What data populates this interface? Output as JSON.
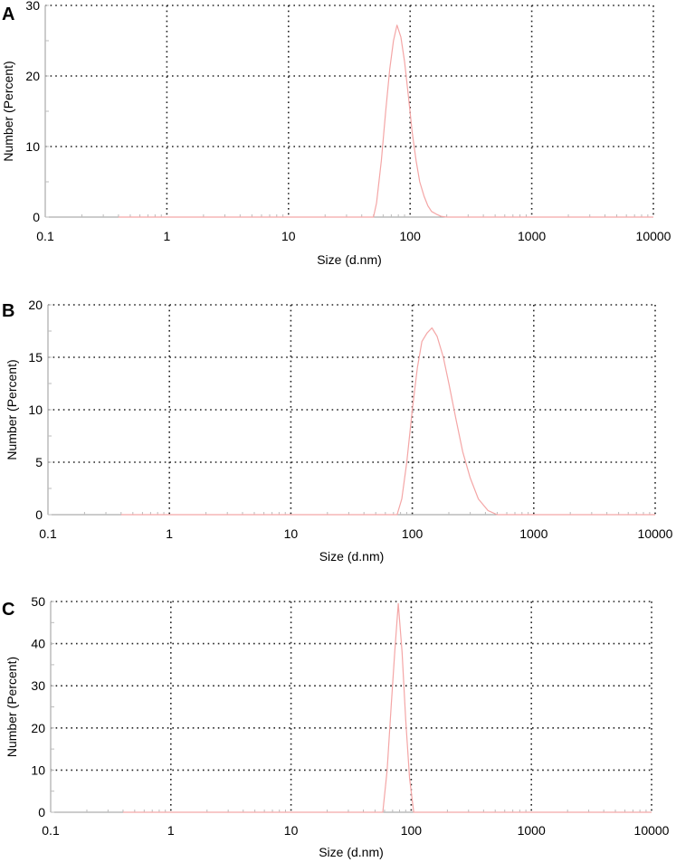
{
  "chart_data": [
    {
      "panel_label": "A",
      "type": "line",
      "xlabel": "Size (d.nm)",
      "ylabel": "Number (Percent)",
      "xscale": "log",
      "xlim": [
        0.1,
        10000
      ],
      "ylim": [
        0,
        30
      ],
      "x_ticks": [
        "0.1",
        "1",
        "10",
        "100",
        "1000",
        "10000"
      ],
      "y_ticks": [
        "0",
        "10",
        "20",
        "30"
      ],
      "grid": true,
      "line_color": "#f4a6a6",
      "series": [
        {
          "x": [
            0.4,
            50,
            53,
            58,
            63,
            68,
            73,
            78,
            84,
            90,
            97,
            104,
            112,
            120,
            130,
            140,
            150,
            165,
            180,
            200,
            300,
            1000,
            10000
          ],
          "y": [
            0,
            0,
            2,
            8,
            15,
            21,
            25,
            27.2,
            25.5,
            22,
            17,
            12,
            8,
            5,
            3,
            1.6,
            0.8,
            0.4,
            0.1,
            0,
            0,
            0,
            0
          ]
        }
      ]
    },
    {
      "panel_label": "B",
      "type": "line",
      "xlabel": "Size (d.nm)",
      "ylabel": "Number (Percent)",
      "xscale": "log",
      "xlim": [
        0.1,
        10000
      ],
      "ylim": [
        0,
        20
      ],
      "x_ticks": [
        "0.1",
        "1",
        "10",
        "100",
        "1000",
        "10000"
      ],
      "y_ticks": [
        "0",
        "5",
        "10",
        "15",
        "20"
      ],
      "grid": true,
      "line_color": "#f4a6a6",
      "series": [
        {
          "x": [
            0.4,
            75,
            82,
            90,
            100,
            110,
            120,
            132,
            145,
            160,
            180,
            200,
            230,
            260,
            300,
            350,
            420,
            500,
            1000,
            10000
          ],
          "y": [
            0,
            0,
            1.5,
            5,
            10,
            14,
            16.5,
            17.3,
            17.8,
            17,
            15,
            12.5,
            9,
            6,
            3.5,
            1.5,
            0.4,
            0,
            0,
            0
          ]
        }
      ]
    },
    {
      "panel_label": "C",
      "type": "line",
      "xlabel": "Size (d.nm)",
      "ylabel": "Number (Percent)",
      "xscale": "log",
      "xlim": [
        0.1,
        10000
      ],
      "ylim": [
        0,
        50
      ],
      "x_ticks": [
        "0.1",
        "1",
        "10",
        "100",
        "1000",
        "10000"
      ],
      "y_ticks": [
        "0",
        "10",
        "20",
        "30",
        "40",
        "50"
      ],
      "grid": true,
      "line_color": "#f4a6a6",
      "series": [
        {
          "x": [
            0.4,
            58,
            63,
            68,
            73,
            78,
            84,
            90,
            97,
            105,
            112,
            10000
          ],
          "y": [
            0,
            0,
            10,
            25,
            38,
            49.5,
            38,
            22,
            8,
            0,
            0,
            0
          ]
        }
      ]
    }
  ]
}
